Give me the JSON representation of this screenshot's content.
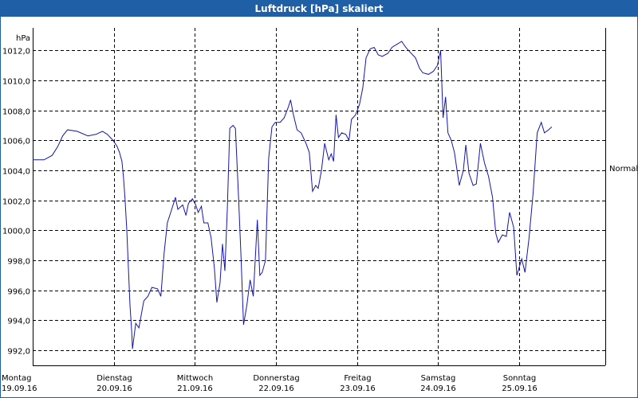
{
  "window": {
    "title": "Luftdruck [hPa] skaliert"
  },
  "colors": {
    "line": "#1515b0",
    "grid": "#000000",
    "title_bg": "#1f5fa5"
  },
  "chart_data": {
    "type": "line",
    "title": "Luftdruck [hPa] skaliert",
    "ylabel": "hPa",
    "right_label": "Normal",
    "ylim": [
      991.0,
      1013.5
    ],
    "yticks": [
      992.0,
      994.0,
      996.0,
      998.0,
      1000.0,
      1002.0,
      1004.0,
      1006.0,
      1008.0,
      1010.0,
      1012.0
    ],
    "ytick_labels": [
      "992,0",
      "994,0",
      "996,0",
      "998,0",
      "1000,0",
      "1002,0",
      "1004,0",
      "1006,0",
      "1008,0",
      "1010,0",
      "1012,0"
    ],
    "xlim": [
      0,
      7.06
    ],
    "days": [
      {
        "day": "Montag",
        "date": "19.09.16"
      },
      {
        "day": "Dienstag",
        "date": "20.09.16"
      },
      {
        "day": "Mittwoch",
        "date": "21.09.16"
      },
      {
        "day": "Donnerstag",
        "date": "22.09.16"
      },
      {
        "day": "Freitag",
        "date": "23.09.16"
      },
      {
        "day": "Samstag",
        "date": "24.09.16"
      },
      {
        "day": "Sonntag",
        "date": "25.09.16"
      }
    ],
    "grid": true,
    "series": [
      {
        "points": [
          [
            0.0,
            1004.7
          ],
          [
            0.14,
            1004.7
          ],
          [
            0.24,
            1005.0
          ],
          [
            0.31,
            1005.6
          ],
          [
            0.37,
            1006.3
          ],
          [
            0.43,
            1006.7
          ],
          [
            0.55,
            1006.6
          ],
          [
            0.68,
            1006.3
          ],
          [
            0.78,
            1006.4
          ],
          [
            0.86,
            1006.6
          ],
          [
            0.92,
            1006.4
          ],
          [
            0.99,
            1006.0
          ],
          [
            1.04,
            1005.6
          ],
          [
            1.07,
            1005.2
          ],
          [
            1.1,
            1004.6
          ],
          [
            1.12,
            1003.5
          ],
          [
            1.14,
            1002.0
          ],
          [
            1.16,
            1000.0
          ],
          [
            1.18,
            997.5
          ],
          [
            1.2,
            995.0
          ],
          [
            1.22,
            993.3
          ],
          [
            1.23,
            992.1
          ],
          [
            1.27,
            993.8
          ],
          [
            1.31,
            993.5
          ],
          [
            1.37,
            995.3
          ],
          [
            1.42,
            995.6
          ],
          [
            1.47,
            996.2
          ],
          [
            1.54,
            996.1
          ],
          [
            1.58,
            995.6
          ],
          [
            1.62,
            998.5
          ],
          [
            1.66,
            1000.5
          ],
          [
            1.72,
            1001.5
          ],
          [
            1.76,
            1002.2
          ],
          [
            1.79,
            1001.4
          ],
          [
            1.85,
            1001.7
          ],
          [
            1.89,
            1001.0
          ],
          [
            1.92,
            1001.8
          ],
          [
            1.97,
            1002.1
          ],
          [
            2.01,
            1001.7
          ],
          [
            2.04,
            1001.2
          ],
          [
            2.08,
            1001.6
          ],
          [
            2.11,
            1000.5
          ],
          [
            2.16,
            1000.5
          ],
          [
            2.2,
            999.5
          ],
          [
            2.24,
            997.5
          ],
          [
            2.27,
            995.2
          ],
          [
            2.31,
            996.5
          ],
          [
            2.34,
            999.1
          ],
          [
            2.37,
            997.3
          ],
          [
            2.4,
            1001.5
          ],
          [
            2.43,
            1006.8
          ],
          [
            2.47,
            1007.0
          ],
          [
            2.5,
            1006.8
          ],
          [
            2.54,
            1002.0
          ],
          [
            2.57,
            998.0
          ],
          [
            2.6,
            993.7
          ],
          [
            2.64,
            995.0
          ],
          [
            2.68,
            996.7
          ],
          [
            2.72,
            995.6
          ],
          [
            2.77,
            1000.7
          ],
          [
            2.8,
            997.0
          ],
          [
            2.83,
            997.2
          ],
          [
            2.87,
            998.0
          ],
          [
            2.91,
            1004.8
          ],
          [
            2.95,
            1006.9
          ],
          [
            2.99,
            1007.2
          ],
          [
            3.05,
            1007.2
          ],
          [
            3.1,
            1007.5
          ],
          [
            3.15,
            1008.2
          ],
          [
            3.18,
            1008.7
          ],
          [
            3.21,
            1007.8
          ],
          [
            3.26,
            1006.7
          ],
          [
            3.31,
            1006.5
          ],
          [
            3.37,
            1005.8
          ],
          [
            3.41,
            1005.2
          ],
          [
            3.45,
            1002.6
          ],
          [
            3.49,
            1003.0
          ],
          [
            3.52,
            1002.8
          ],
          [
            3.56,
            1004.0
          ],
          [
            3.6,
            1005.8
          ],
          [
            3.65,
            1004.7
          ],
          [
            3.68,
            1005.1
          ],
          [
            3.71,
            1004.6
          ],
          [
            3.74,
            1007.7
          ],
          [
            3.77,
            1006.2
          ],
          [
            3.81,
            1006.5
          ],
          [
            3.86,
            1006.4
          ],
          [
            3.9,
            1006.0
          ],
          [
            3.93,
            1007.4
          ],
          [
            3.98,
            1007.7
          ],
          [
            4.03,
            1008.4
          ],
          [
            4.07,
            1009.5
          ],
          [
            4.11,
            1011.5
          ],
          [
            4.16,
            1012.1
          ],
          [
            4.21,
            1012.2
          ],
          [
            4.26,
            1011.7
          ],
          [
            4.31,
            1011.6
          ],
          [
            4.38,
            1011.8
          ],
          [
            4.43,
            1012.2
          ],
          [
            4.49,
            1012.4
          ],
          [
            4.55,
            1012.6
          ],
          [
            4.6,
            1012.2
          ],
          [
            4.65,
            1011.9
          ],
          [
            4.72,
            1011.5
          ],
          [
            4.77,
            1010.8
          ],
          [
            4.81,
            1010.5
          ],
          [
            4.88,
            1010.4
          ],
          [
            4.94,
            1010.6
          ],
          [
            4.99,
            1011.0
          ],
          [
            5.03,
            1012.0
          ],
          [
            5.06,
            1007.5
          ],
          [
            5.09,
            1008.9
          ],
          [
            5.12,
            1006.5
          ],
          [
            5.16,
            1006.0
          ],
          [
            5.2,
            1005.2
          ],
          [
            5.26,
            1003.0
          ],
          [
            5.31,
            1004.0
          ],
          [
            5.34,
            1005.7
          ],
          [
            5.38,
            1003.8
          ],
          [
            5.43,
            1003.0
          ],
          [
            5.47,
            1003.1
          ],
          [
            5.52,
            1005.8
          ],
          [
            5.57,
            1004.5
          ],
          [
            5.62,
            1003.6
          ],
          [
            5.67,
            1002.2
          ],
          [
            5.71,
            999.8
          ],
          [
            5.74,
            999.2
          ],
          [
            5.79,
            999.7
          ],
          [
            5.84,
            999.6
          ],
          [
            5.88,
            1001.2
          ],
          [
            5.93,
            1000.2
          ],
          [
            5.97,
            997.0
          ],
          [
            6.03,
            998.1
          ],
          [
            6.07,
            997.2
          ],
          [
            6.12,
            999.5
          ],
          [
            6.17,
            1002.5
          ],
          [
            6.22,
            1006.5
          ],
          [
            6.27,
            1007.2
          ],
          [
            6.31,
            1006.5
          ],
          [
            6.36,
            1006.7
          ],
          [
            6.4,
            1006.9
          ]
        ]
      }
    ]
  }
}
